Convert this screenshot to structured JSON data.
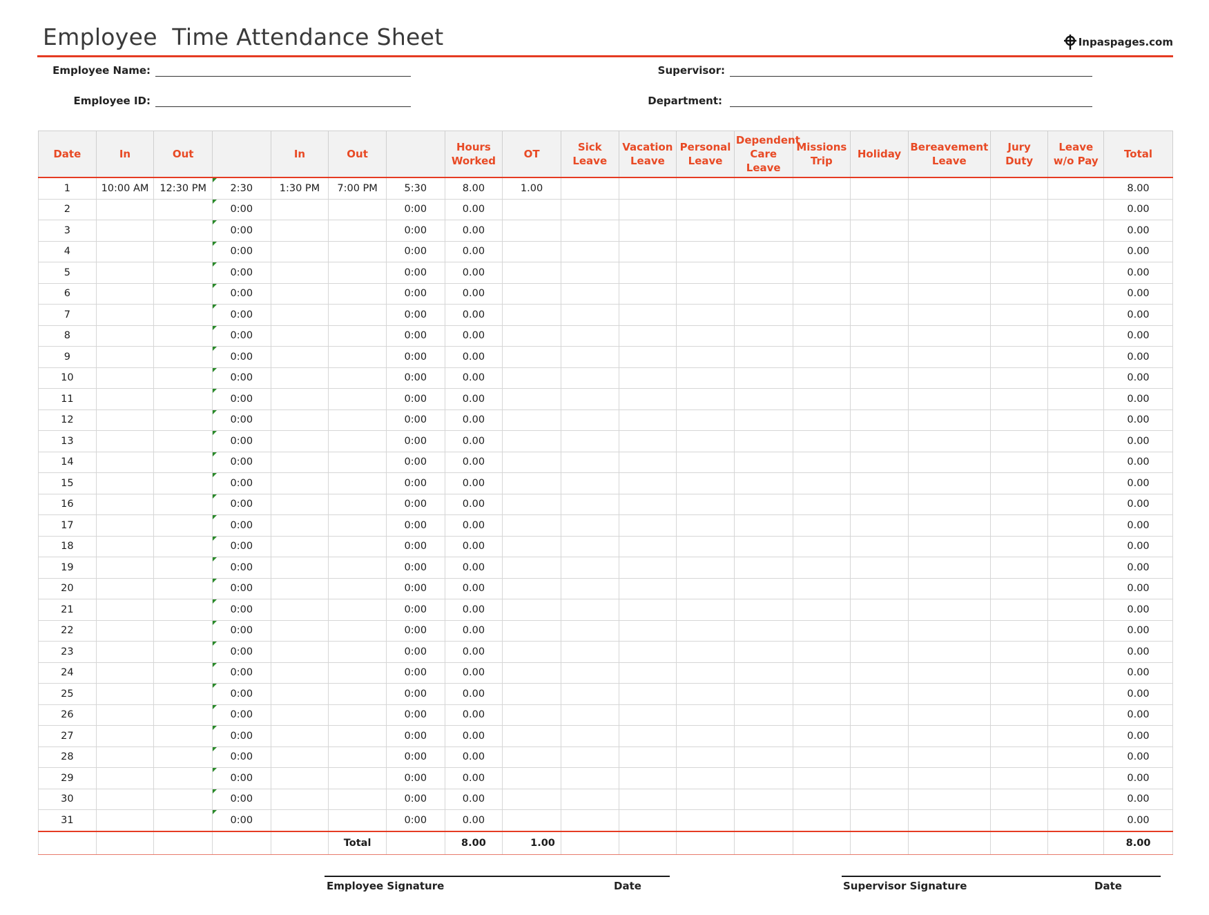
{
  "header": {
    "title": "Employee  Time Attendance Sheet",
    "brand": "Inpaspages.com"
  },
  "fields": {
    "employee_name": "Employee Name:",
    "employee_id": "Employee ID:",
    "supervisor": "Supervisor:",
    "department": "Department:"
  },
  "table": {
    "columns": [
      "Date",
      "In",
      "Out",
      "",
      "In",
      "Out",
      "",
      "Hours Worked",
      "OT",
      "Sick Leave",
      "Vacation Leave",
      "Personal Leave",
      "Dependent Care Leave",
      "Missions Trip",
      "Holiday",
      "Bereavement Leave",
      "Jury Duty",
      "Leave w/o Pay",
      "Total"
    ],
    "first_row": [
      "1",
      "10:00 AM",
      "12:30 PM",
      "2:30",
      "1:30 PM",
      "7:00 PM",
      "5:30",
      "8.00",
      "1.00",
      "",
      "",
      "",
      "",
      "",
      "",
      "",
      "",
      "",
      "8.00"
    ],
    "blank_row_values": {
      "first_span": "0:00",
      "second_span": "0:00",
      "hours_worked": "0.00",
      "total": "0.00"
    },
    "days": 31,
    "total_row": {
      "label": "Total",
      "hours_worked": "8.00",
      "ot": "1.00",
      "total": "8.00"
    }
  },
  "signatures": {
    "employee_signature": "Employee Signature",
    "employee_date": "Date",
    "supervisor_signature": "Supervisor Signature",
    "supervisor_date": "Date"
  },
  "colors": {
    "accent": "#e53b22",
    "header_text": "#e84a25",
    "header_bg": "#f2f2f2"
  }
}
